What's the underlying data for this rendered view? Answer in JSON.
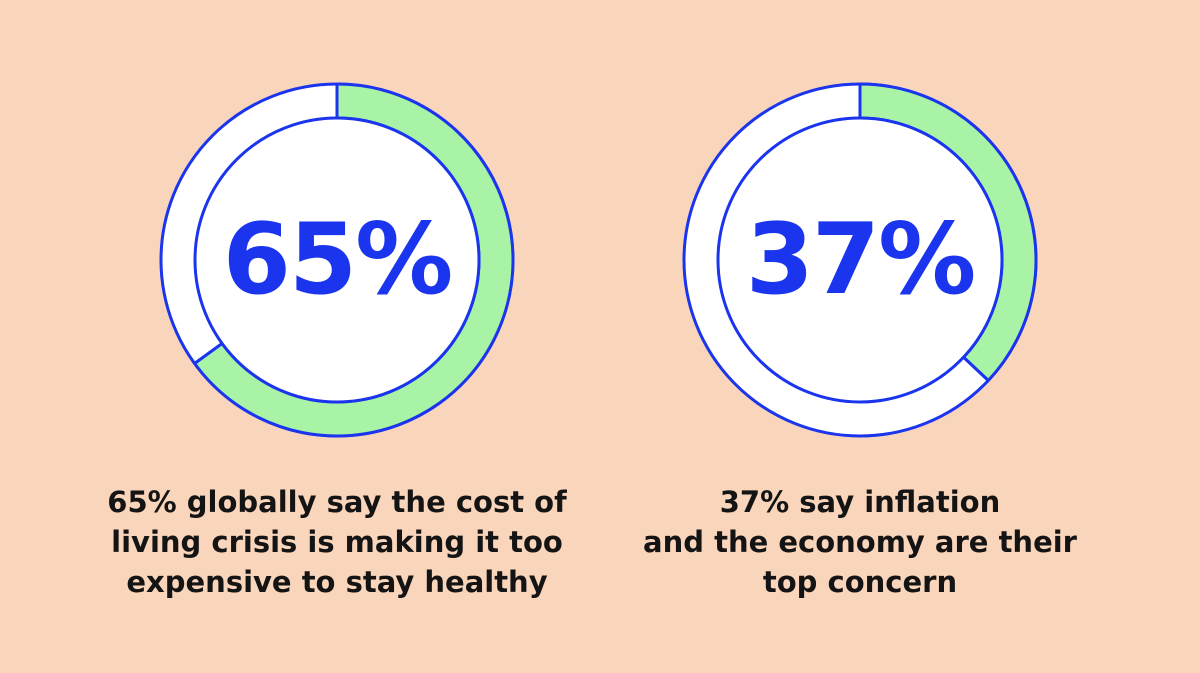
{
  "colors": {
    "background": "#F9D5BC",
    "ring_outline": "#1B35EE",
    "ring_fill": "#A9F3A6",
    "inner_circle": "#FFFFFF",
    "number_text": "#1B35EE",
    "caption_text": "#141414"
  },
  "chart_data": [
    {
      "type": "pie",
      "variant": "donut",
      "value_percent": 65,
      "label": "65%",
      "caption_lines": [
        "65% globally say the cost of",
        "living crisis is making it too",
        "expensive to stay healthy"
      ]
    },
    {
      "type": "pie",
      "variant": "donut",
      "value_percent": 37,
      "label": "37%",
      "caption_lines": [
        "37% say inflation",
        "and the economy are their",
        "top concern"
      ]
    }
  ]
}
